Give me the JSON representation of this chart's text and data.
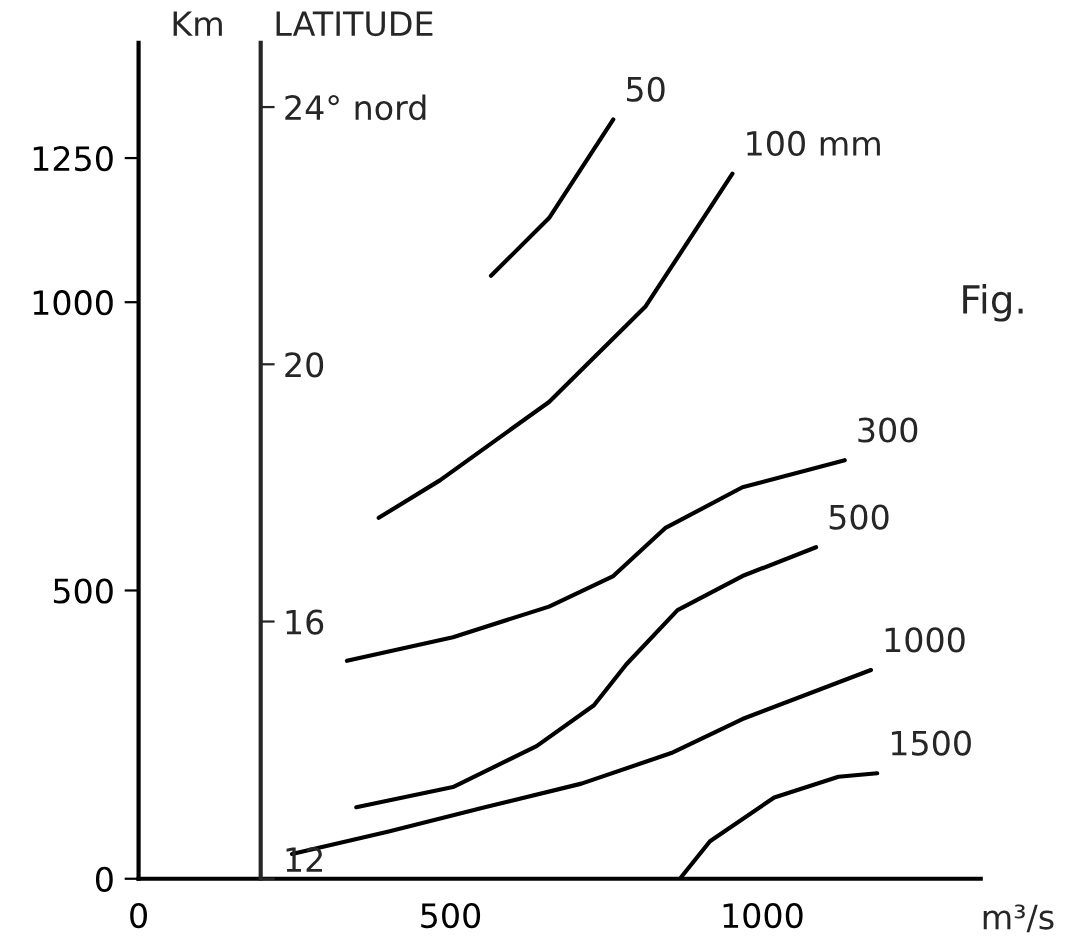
{
  "chart_data": {
    "type": "line",
    "ylabel": "Km",
    "y2label": "LATITUDE",
    "xlabel": "m³/s",
    "annotations": [
      "Fig."
    ],
    "xlim": [
      0,
      1350
    ],
    "xticks": [
      0,
      500,
      1000
    ],
    "ylim": [
      0,
      1450
    ],
    "yticks": [
      0,
      500,
      1000,
      1250
    ],
    "y2lim": [
      12,
      25
    ],
    "y2ticks": [
      12,
      16,
      20,
      {
        "value": 24,
        "label": "24° nord"
      }
    ],
    "grid": false,
    "legend": false,
    "marker": "none",
    "line_style": "solid",
    "series": [
      {
        "name": "50",
        "color": "#000000",
        "x": [
          565,
          658,
          761
        ],
        "values": [
          1046,
          1146,
          1317
        ]
      },
      {
        "name": "100 mm",
        "color": "#000000",
        "x": [
          385,
          483,
          658,
          813,
          952
        ],
        "values": [
          626,
          691,
          827,
          993,
          1223
        ]
      },
      {
        "name": "300",
        "color": "#000000",
        "x": [
          334,
          504,
          658,
          761,
          844,
          968,
          1132
        ],
        "values": [
          378,
          419,
          472,
          525,
          608,
          679,
          726
        ]
      },
      {
        "name": "500",
        "color": "#000000",
        "x": [
          349,
          504,
          638,
          730,
          782,
          864,
          968,
          1086
        ],
        "values": [
          124,
          159,
          230,
          301,
          372,
          466,
          525,
          575
        ]
      },
      {
        "name": "1000",
        "color": "#000000",
        "x": [
          246,
          401,
          555,
          710,
          854,
          968,
          1174
        ],
        "values": [
          43,
          82,
          124,
          165,
          218,
          277,
          362
        ]
      },
      {
        "name": "1500",
        "color": "#000000",
        "x": [
          870,
          916,
          1019,
          1122,
          1184
        ],
        "values": [
          3,
          65,
          141,
          177,
          183
        ]
      }
    ]
  }
}
